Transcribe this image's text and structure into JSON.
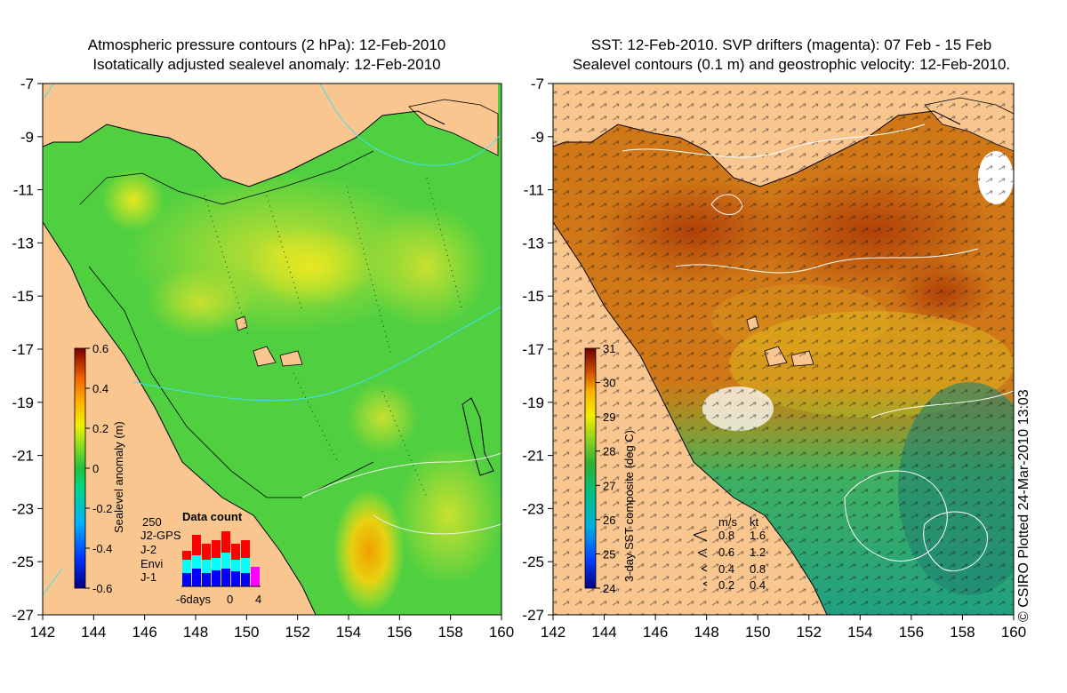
{
  "left_panel": {
    "title_line1": "Atmospheric pressure contours (2 hPa): 12-Feb-2010",
    "title_line2": "Isotatically adjusted sealevel anomaly: 12-Feb-2010",
    "colorbar": {
      "label": "Sealevel anomaly (m)",
      "ticks": [
        "0.6",
        "0.4",
        "0.2",
        "0",
        "-0.2",
        "-0.4",
        "-0.6"
      ],
      "colors": [
        "#000080",
        "#0040ff",
        "#00c0ff",
        "#00e0a0",
        "#20c040",
        "#a0e020",
        "#f0f000",
        "#ffb000",
        "#f06000",
        "#b01000",
        "#700000"
      ]
    },
    "data_count": {
      "title": "Data count",
      "max_label": "250",
      "legend": [
        {
          "name": "J2-GPS",
          "color": "#ff00ff"
        },
        {
          "name": "J-2",
          "color": "#ff0000"
        },
        {
          "name": "Envi",
          "color": "#00ffff"
        },
        {
          "name": "J-1",
          "color": "#0000ff"
        }
      ],
      "x_labels": [
        "-6days",
        "0",
        "4"
      ]
    }
  },
  "right_panel": {
    "title_line1": "SST: 12-Feb-2010. SVP drifters (magenta): 07 Feb - 15 Feb",
    "title_line2": "Sealevel contours (0.1 m) and geostrophic velocity: 12-Feb-2010.",
    "colorbar": {
      "label": "3-day SST composite (deg C)",
      "ticks": [
        "31",
        "30",
        "29",
        "28",
        "27",
        "26",
        "25",
        "24"
      ],
      "colors": [
        "#000080",
        "#0040ff",
        "#00c0ff",
        "#00c080",
        "#20b040",
        "#80d020",
        "#f0f000",
        "#ffb000",
        "#e06000",
        "#a02000",
        "#700000"
      ]
    },
    "velocity_legend": {
      "header_ms": "m/s",
      "header_kt": "kt",
      "rows": [
        {
          "ms": "0.8",
          "kt": "1.6"
        },
        {
          "ms": "0.6",
          "kt": "1.2"
        },
        {
          "ms": "0.4",
          "kt": "0.8"
        },
        {
          "ms": "0.2",
          "kt": "0.4"
        }
      ]
    }
  },
  "axes": {
    "x_ticks": [
      "142",
      "144",
      "146",
      "148",
      "150",
      "152",
      "154",
      "156",
      "158",
      "160"
    ],
    "y_ticks": [
      "-7",
      "-9",
      "-11",
      "-13",
      "-15",
      "-17",
      "-19",
      "-21",
      "-23",
      "-25",
      "-27"
    ]
  },
  "credit": "© CSIRO Plotted 24-Mar-2010 13:03",
  "map_colors": {
    "land": "#f9c690",
    "ocean_green": "#50d040",
    "sst_warm": "#c06010"
  }
}
